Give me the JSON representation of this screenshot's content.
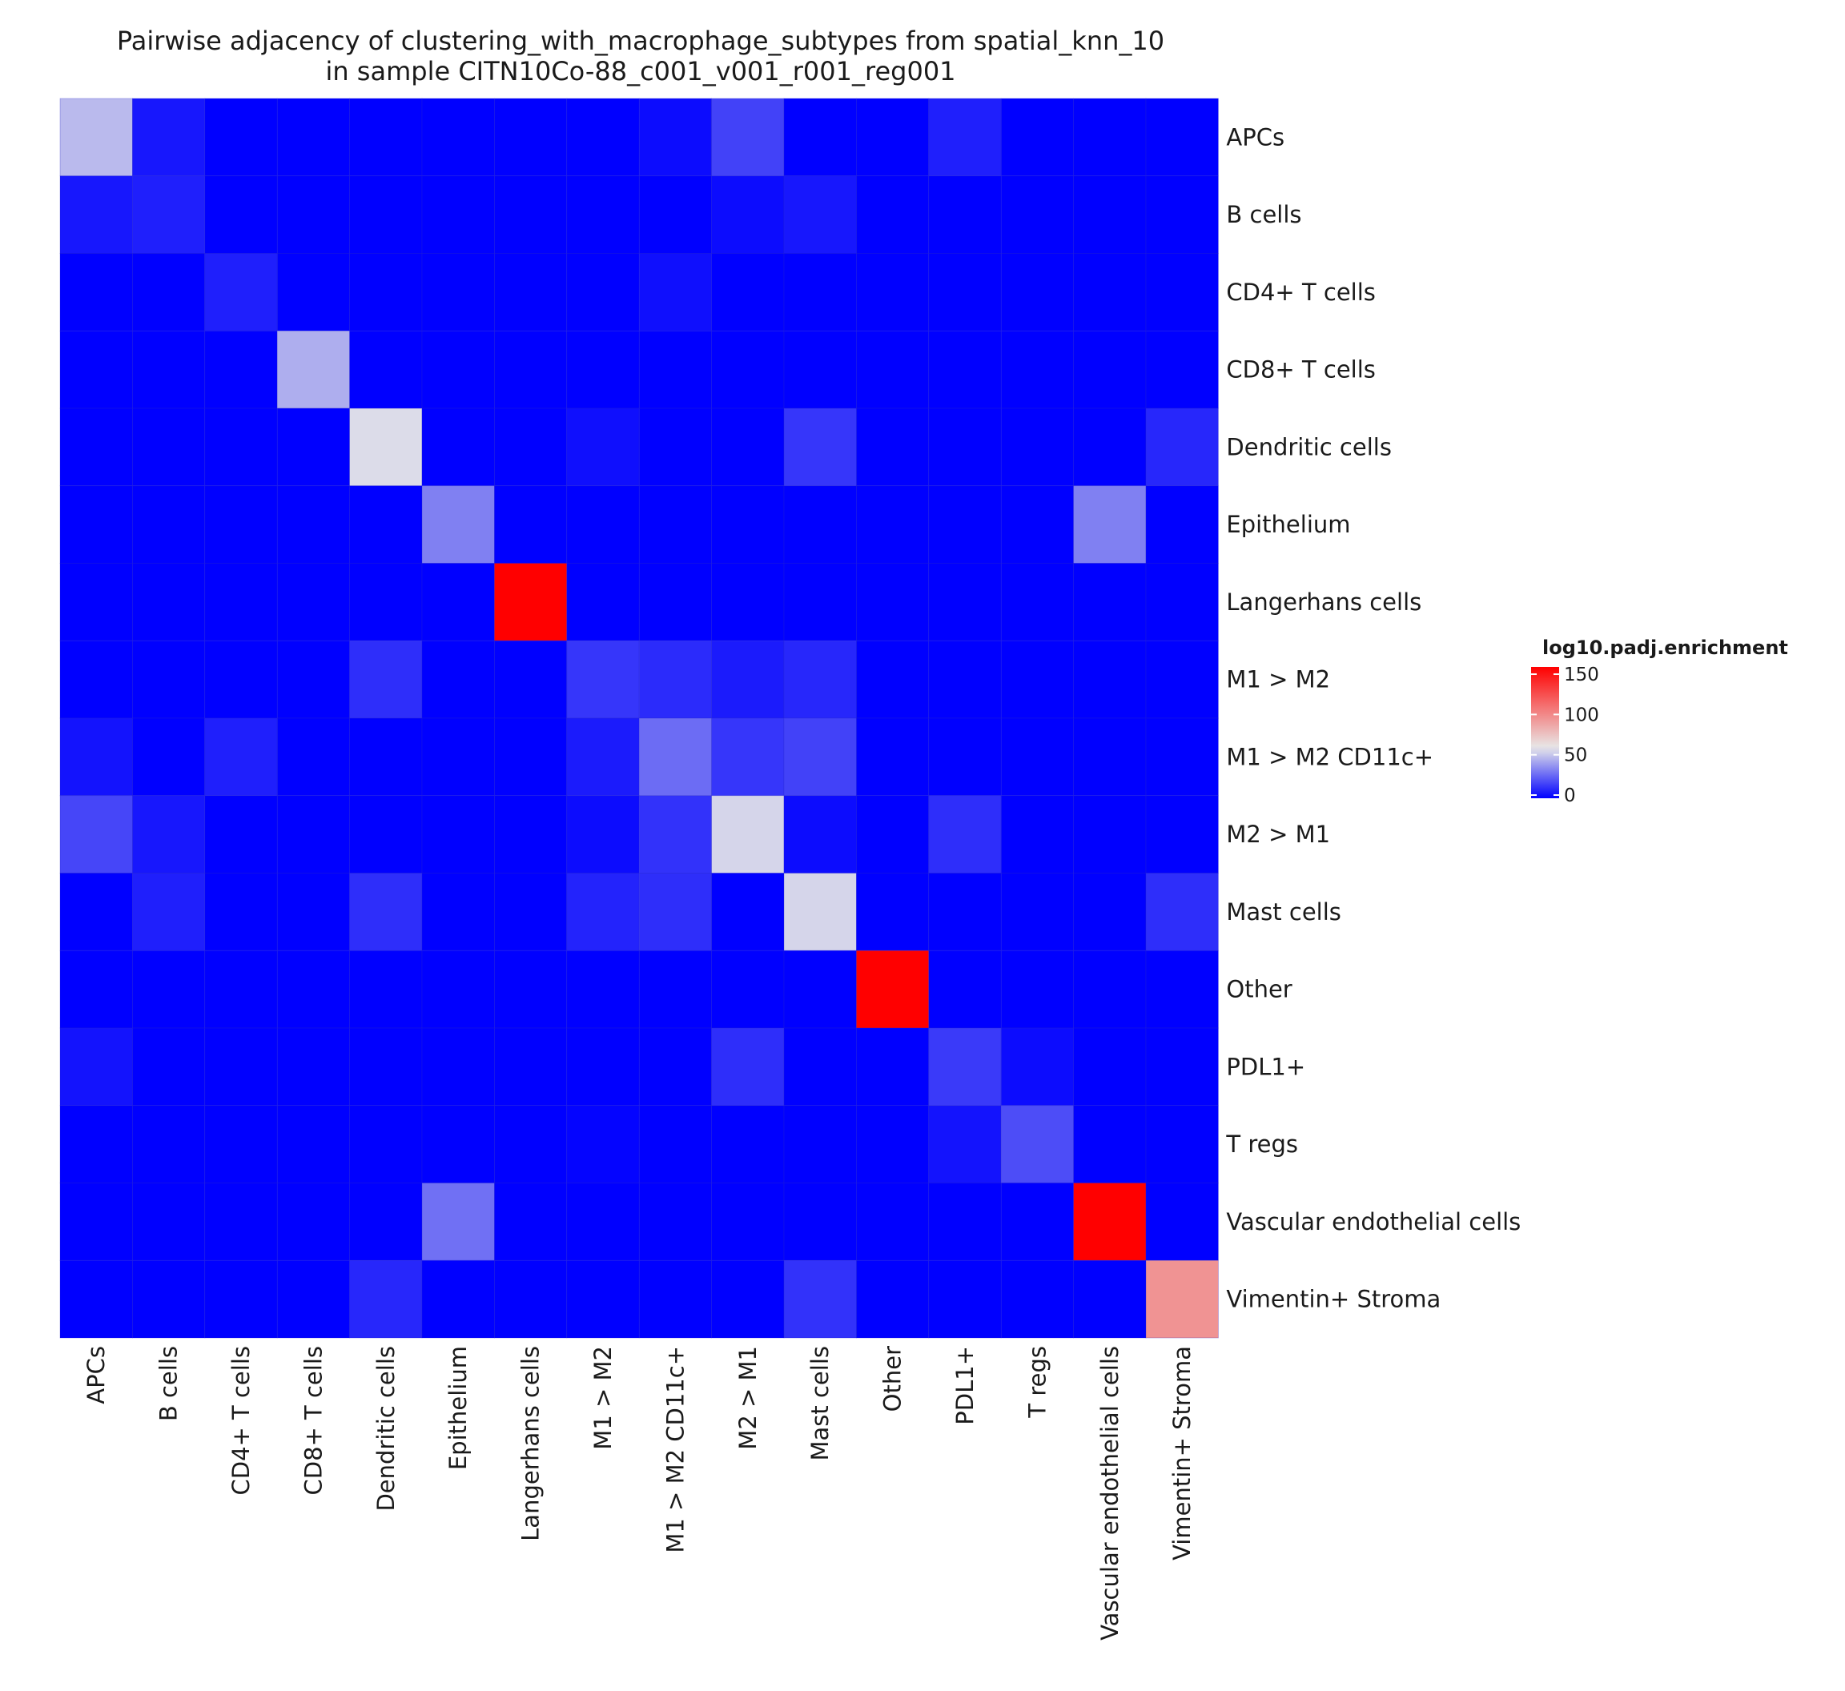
{
  "chart_data": {
    "type": "heatmap",
    "title": "Pairwise adjacency of clustering_with_macrophage_subtypes from spatial_knn_10",
    "subtitle": "in sample CITN10Co-88_c001_v001_r001_reg001",
    "rows": [
      "APCs",
      "B cells",
      "CD4+ T cells",
      "CD8+ T cells",
      "Dendritic cells",
      "Epithelium",
      "Langerhans cells",
      "M1 > M2",
      "M1 > M2 CD11c+",
      "M2 > M1",
      "Mast cells",
      "Other",
      "PDL1+",
      "T regs",
      "Vascular endothelial cells",
      "Vimentin+ Stroma"
    ],
    "columns": [
      "APCs",
      "B cells",
      "CD4+ T cells",
      "CD8+ T cells",
      "Dendritic cells",
      "Epithelium",
      "Langerhans cells",
      "M1 > M2",
      "M1 > M2 CD11c+",
      "M2 > M1",
      "Mast cells",
      "Other",
      "PDL1+",
      "T regs",
      "Vascular endothelial cells",
      "Vimentin+ Stroma"
    ],
    "values": [
      [
        48,
        6,
        0,
        0,
        0,
        0,
        0,
        0,
        3,
        17,
        0,
        0,
        8,
        0,
        0,
        0
      ],
      [
        6,
        8,
        0,
        0,
        0,
        0,
        0,
        0,
        0,
        3,
        6,
        0,
        0,
        0,
        0,
        0
      ],
      [
        0,
        0,
        8,
        0,
        0,
        0,
        0,
        0,
        4,
        0,
        0,
        0,
        0,
        0,
        0,
        0
      ],
      [
        0,
        0,
        0,
        45,
        0,
        0,
        0,
        0,
        0,
        0,
        0,
        0,
        0,
        0,
        0,
        0
      ],
      [
        0,
        0,
        0,
        0,
        57,
        0,
        0,
        4,
        0,
        0,
        14,
        0,
        0,
        0,
        0,
        10
      ],
      [
        0,
        0,
        0,
        0,
        0,
        33,
        0,
        0,
        0,
        0,
        0,
        0,
        0,
        0,
        33,
        0
      ],
      [
        0,
        0,
        0,
        0,
        0,
        0,
        155,
        0,
        0,
        0,
        0,
        0,
        0,
        0,
        0,
        0
      ],
      [
        0,
        0,
        0,
        0,
        12,
        0,
        0,
        14,
        11,
        7,
        10,
        0,
        0,
        0,
        0,
        0
      ],
      [
        5,
        0,
        8,
        0,
        0,
        0,
        0,
        7,
        28,
        14,
        17,
        0,
        0,
        0,
        0,
        0
      ],
      [
        18,
        6,
        0,
        0,
        0,
        0,
        0,
        3,
        13,
        55,
        3,
        0,
        12,
        0,
        0,
        0
      ],
      [
        0,
        8,
        0,
        0,
        12,
        0,
        0,
        9,
        12,
        0,
        55,
        0,
        0,
        0,
        0,
        12
      ],
      [
        0,
        0,
        0,
        0,
        0,
        0,
        0,
        0,
        0,
        0,
        0,
        155,
        0,
        0,
        0,
        0
      ],
      [
        5,
        0,
        0,
        0,
        0,
        0,
        0,
        0,
        0,
        12,
        0,
        0,
        15,
        3,
        0,
        0
      ],
      [
        0,
        0,
        0,
        0,
        0,
        0,
        0,
        1,
        0,
        0,
        0,
        0,
        5,
        20,
        0,
        0
      ],
      [
        0,
        0,
        0,
        0,
        0,
        29,
        0,
        0,
        0,
        0,
        0,
        0,
        0,
        0,
        155,
        0
      ],
      [
        0,
        0,
        0,
        0,
        10,
        0,
        0,
        0,
        0,
        0,
        13,
        0,
        0,
        0,
        0,
        95
      ]
    ],
    "color_scale": {
      "low": "#0000FF",
      "mid": "#E8E8E8",
      "high": "#FF0000",
      "domain": [
        0,
        60,
        155
      ]
    },
    "legend": {
      "title": "log10.padj.enrichment",
      "ticks": [
        150,
        100,
        50,
        0
      ],
      "placement": "right"
    },
    "grid": false
  }
}
